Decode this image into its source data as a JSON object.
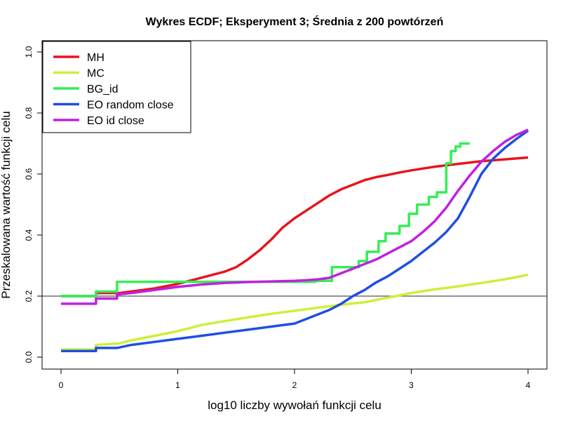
{
  "chart_data": {
    "type": "line",
    "title": "Wykres ECDF; Eksperyment 3; Średnia z 200 powtórzeń",
    "xlabel": "log10 liczby wywołań funkcji celu",
    "ylabel": "Przeskalowana wartość funkcji celu",
    "xlim": [
      0,
      4
    ],
    "ylim": [
      0,
      1
    ],
    "x_ticks": [
      "0",
      "1",
      "2",
      "3",
      "4"
    ],
    "y_ticks": [
      "0.0",
      "0.2",
      "0.4",
      "0.6",
      "0.8",
      "1.0"
    ],
    "grid": false,
    "legend_position": "top-left",
    "reference_line": {
      "y": 0.2,
      "color": "#555555"
    },
    "series": [
      {
        "name": "MH",
        "color": "#e8141c",
        "step": false,
        "points": [
          [
            0,
            0.2
          ],
          [
            0.3,
            0.2
          ],
          [
            0.3,
            0.21
          ],
          [
            0.5,
            0.21
          ],
          [
            0.6,
            0.215
          ],
          [
            0.8,
            0.225
          ],
          [
            1.0,
            0.24
          ],
          [
            1.2,
            0.26
          ],
          [
            1.4,
            0.28
          ],
          [
            1.5,
            0.295
          ],
          [
            1.6,
            0.32
          ],
          [
            1.7,
            0.35
          ],
          [
            1.8,
            0.385
          ],
          [
            1.9,
            0.425
          ],
          [
            2.0,
            0.455
          ],
          [
            2.1,
            0.48
          ],
          [
            2.2,
            0.505
          ],
          [
            2.3,
            0.53
          ],
          [
            2.4,
            0.55
          ],
          [
            2.5,
            0.565
          ],
          [
            2.6,
            0.58
          ],
          [
            2.7,
            0.59
          ],
          [
            2.8,
            0.597
          ],
          [
            2.9,
            0.605
          ],
          [
            3.0,
            0.612
          ],
          [
            3.1,
            0.618
          ],
          [
            3.2,
            0.624
          ],
          [
            3.4,
            0.633
          ],
          [
            3.6,
            0.642
          ],
          [
            3.8,
            0.648
          ],
          [
            4.0,
            0.654
          ]
        ]
      },
      {
        "name": "MC",
        "color": "#ccf03a",
        "step": false,
        "points": [
          [
            0,
            0.025
          ],
          [
            0.3,
            0.025
          ],
          [
            0.3,
            0.04
          ],
          [
            0.5,
            0.045
          ],
          [
            0.6,
            0.055
          ],
          [
            0.8,
            0.07
          ],
          [
            1.0,
            0.085
          ],
          [
            1.2,
            0.105
          ],
          [
            1.4,
            0.118
          ],
          [
            1.6,
            0.13
          ],
          [
            1.8,
            0.142
          ],
          [
            2.0,
            0.152
          ],
          [
            2.2,
            0.162
          ],
          [
            2.4,
            0.172
          ],
          [
            2.6,
            0.18
          ],
          [
            2.8,
            0.195
          ],
          [
            3.0,
            0.21
          ],
          [
            3.2,
            0.222
          ],
          [
            3.4,
            0.232
          ],
          [
            3.6,
            0.243
          ],
          [
            3.8,
            0.255
          ],
          [
            4.0,
            0.27
          ]
        ]
      },
      {
        "name": "BG_id",
        "color": "#33ee55",
        "step": true,
        "points": [
          [
            0,
            0.2
          ],
          [
            0.3,
            0.2
          ],
          [
            0.3,
            0.215
          ],
          [
            0.48,
            0.215
          ],
          [
            0.48,
            0.247
          ],
          [
            2.18,
            0.247
          ],
          [
            2.18,
            0.25
          ],
          [
            2.32,
            0.25
          ],
          [
            2.32,
            0.295
          ],
          [
            2.55,
            0.295
          ],
          [
            2.55,
            0.315
          ],
          [
            2.62,
            0.315
          ],
          [
            2.62,
            0.345
          ],
          [
            2.72,
            0.345
          ],
          [
            2.72,
            0.38
          ],
          [
            2.78,
            0.38
          ],
          [
            2.78,
            0.405
          ],
          [
            2.9,
            0.405
          ],
          [
            2.9,
            0.43
          ],
          [
            2.98,
            0.43
          ],
          [
            2.98,
            0.47
          ],
          [
            3.05,
            0.47
          ],
          [
            3.05,
            0.5
          ],
          [
            3.15,
            0.5
          ],
          [
            3.15,
            0.525
          ],
          [
            3.22,
            0.525
          ],
          [
            3.22,
            0.54
          ],
          [
            3.3,
            0.54
          ],
          [
            3.3,
            0.635
          ],
          [
            3.34,
            0.635
          ],
          [
            3.34,
            0.675
          ],
          [
            3.38,
            0.675
          ],
          [
            3.38,
            0.69
          ],
          [
            3.42,
            0.69
          ],
          [
            3.42,
            0.7
          ],
          [
            3.5,
            0.7
          ]
        ]
      },
      {
        "name": "EO random close",
        "color": "#1f4fe0",
        "step": false,
        "points": [
          [
            0,
            0.02
          ],
          [
            0.3,
            0.02
          ],
          [
            0.3,
            0.03
          ],
          [
            0.48,
            0.03
          ],
          [
            0.6,
            0.04
          ],
          [
            0.8,
            0.05
          ],
          [
            1.0,
            0.06
          ],
          [
            1.2,
            0.07
          ],
          [
            1.4,
            0.08
          ],
          [
            1.6,
            0.09
          ],
          [
            1.8,
            0.1
          ],
          [
            2.0,
            0.11
          ],
          [
            2.1,
            0.125
          ],
          [
            2.2,
            0.14
          ],
          [
            2.3,
            0.155
          ],
          [
            2.4,
            0.175
          ],
          [
            2.5,
            0.2
          ],
          [
            2.6,
            0.22
          ],
          [
            2.7,
            0.245
          ],
          [
            2.8,
            0.265
          ],
          [
            2.9,
            0.29
          ],
          [
            3.0,
            0.315
          ],
          [
            3.1,
            0.345
          ],
          [
            3.2,
            0.375
          ],
          [
            3.3,
            0.41
          ],
          [
            3.4,
            0.455
          ],
          [
            3.5,
            0.525
          ],
          [
            3.6,
            0.6
          ],
          [
            3.7,
            0.65
          ],
          [
            3.8,
            0.685
          ],
          [
            3.9,
            0.715
          ],
          [
            4.0,
            0.742
          ]
        ]
      },
      {
        "name": "EO id close",
        "color": "#c020e0",
        "step": false,
        "points": [
          [
            0,
            0.175
          ],
          [
            0.3,
            0.175
          ],
          [
            0.3,
            0.192
          ],
          [
            0.48,
            0.192
          ],
          [
            0.48,
            0.205
          ],
          [
            0.6,
            0.21
          ],
          [
            0.8,
            0.22
          ],
          [
            1.0,
            0.23
          ],
          [
            1.2,
            0.238
          ],
          [
            1.4,
            0.243
          ],
          [
            1.6,
            0.246
          ],
          [
            1.8,
            0.248
          ],
          [
            2.0,
            0.25
          ],
          [
            2.1,
            0.252
          ],
          [
            2.2,
            0.255
          ],
          [
            2.3,
            0.26
          ],
          [
            2.4,
            0.275
          ],
          [
            2.5,
            0.29
          ],
          [
            2.6,
            0.305
          ],
          [
            2.7,
            0.32
          ],
          [
            2.8,
            0.34
          ],
          [
            2.9,
            0.36
          ],
          [
            3.0,
            0.38
          ],
          [
            3.1,
            0.41
          ],
          [
            3.2,
            0.445
          ],
          [
            3.3,
            0.49
          ],
          [
            3.4,
            0.545
          ],
          [
            3.5,
            0.595
          ],
          [
            3.6,
            0.64
          ],
          [
            3.7,
            0.675
          ],
          [
            3.8,
            0.705
          ],
          [
            3.9,
            0.728
          ],
          [
            4.0,
            0.745
          ]
        ]
      }
    ]
  }
}
